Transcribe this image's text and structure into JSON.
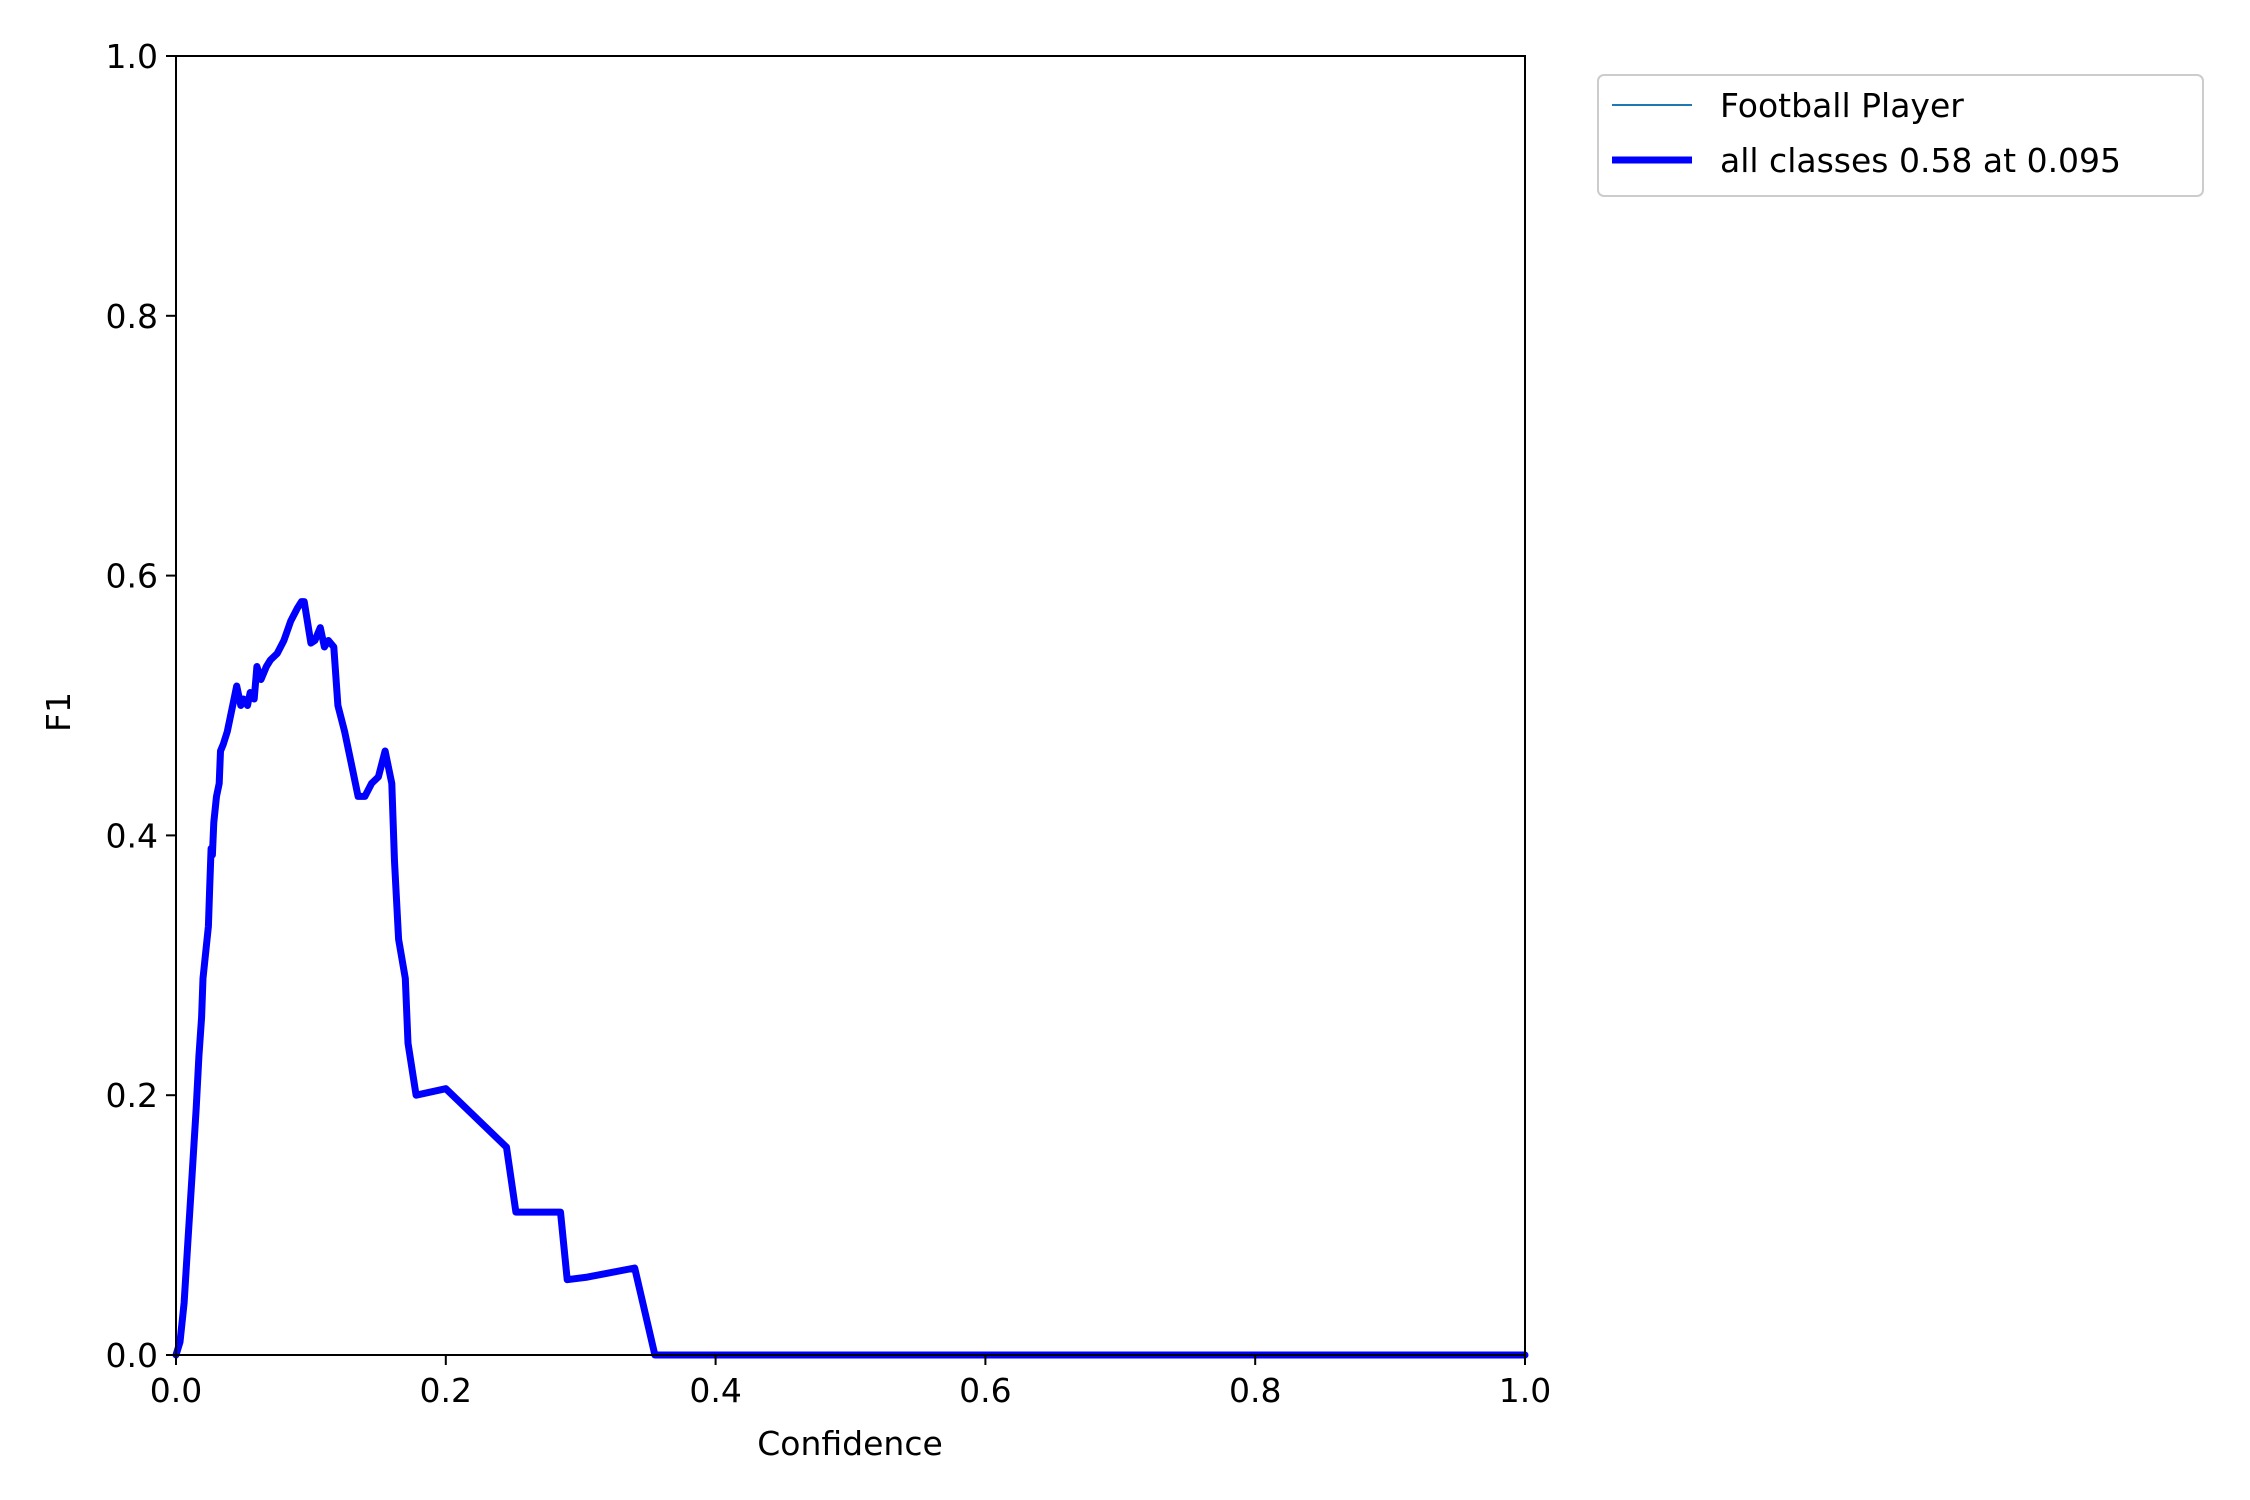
{
  "chart_data": {
    "type": "line",
    "title": "",
    "xlabel": "Confidence",
    "ylabel": "F1",
    "xlim": [
      0,
      1
    ],
    "ylim": [
      0,
      1
    ],
    "x_ticks": [
      "0.0",
      "0.2",
      "0.4",
      "0.6",
      "0.8",
      "1.0"
    ],
    "y_ticks": [
      "0.0",
      "0.2",
      "0.4",
      "0.6",
      "0.8",
      "1.0"
    ],
    "grid": false,
    "legend_position": "outside-top-right",
    "series": [
      {
        "name": "Football Player",
        "color": "#1f77b4",
        "points": [
          [
            0.0,
            0.0
          ],
          [
            0.003,
            0.01
          ],
          [
            0.006,
            0.04
          ],
          [
            0.009,
            0.09
          ],
          [
            0.012,
            0.14
          ],
          [
            0.015,
            0.19
          ],
          [
            0.017,
            0.23
          ],
          [
            0.019,
            0.26
          ],
          [
            0.02,
            0.29
          ],
          [
            0.022,
            0.31
          ],
          [
            0.024,
            0.33
          ],
          [
            0.025,
            0.36
          ],
          [
            0.026,
            0.39
          ],
          [
            0.027,
            0.385
          ],
          [
            0.028,
            0.41
          ],
          [
            0.03,
            0.43
          ],
          [
            0.032,
            0.44
          ],
          [
            0.033,
            0.465
          ],
          [
            0.035,
            0.47
          ],
          [
            0.038,
            0.48
          ],
          [
            0.04,
            0.49
          ],
          [
            0.042,
            0.5
          ],
          [
            0.045,
            0.515
          ],
          [
            0.048,
            0.5
          ],
          [
            0.05,
            0.505
          ],
          [
            0.053,
            0.5
          ],
          [
            0.055,
            0.51
          ],
          [
            0.058,
            0.505
          ],
          [
            0.06,
            0.53
          ],
          [
            0.063,
            0.52
          ],
          [
            0.065,
            0.525
          ],
          [
            0.067,
            0.53
          ],
          [
            0.07,
            0.535
          ],
          [
            0.075,
            0.54
          ],
          [
            0.08,
            0.55
          ],
          [
            0.085,
            0.565
          ],
          [
            0.09,
            0.575
          ],
          [
            0.093,
            0.58
          ],
          [
            0.095,
            0.58
          ],
          [
            0.1,
            0.548
          ],
          [
            0.103,
            0.55
          ],
          [
            0.107,
            0.56
          ],
          [
            0.11,
            0.545
          ],
          [
            0.113,
            0.55
          ],
          [
            0.117,
            0.545
          ],
          [
            0.12,
            0.5
          ],
          [
            0.125,
            0.48
          ],
          [
            0.13,
            0.455
          ],
          [
            0.135,
            0.43
          ],
          [
            0.14,
            0.43
          ],
          [
            0.145,
            0.44
          ],
          [
            0.15,
            0.445
          ],
          [
            0.155,
            0.465
          ],
          [
            0.16,
            0.44
          ],
          [
            0.162,
            0.38
          ],
          [
            0.165,
            0.32
          ],
          [
            0.17,
            0.29
          ],
          [
            0.172,
            0.24
          ],
          [
            0.178,
            0.2
          ],
          [
            0.2,
            0.205
          ],
          [
            0.245,
            0.16
          ],
          [
            0.252,
            0.11
          ],
          [
            0.285,
            0.11
          ],
          [
            0.29,
            0.058
          ],
          [
            0.305,
            0.06
          ],
          [
            0.32,
            0.063
          ],
          [
            0.34,
            0.067
          ],
          [
            0.355,
            0.0
          ],
          [
            1.0,
            0.0
          ]
        ]
      },
      {
        "name": "all classes 0.58 at 0.095",
        "color": "#0000ff",
        "points": [
          [
            0.0,
            0.0
          ],
          [
            0.003,
            0.01
          ],
          [
            0.006,
            0.04
          ],
          [
            0.009,
            0.09
          ],
          [
            0.012,
            0.14
          ],
          [
            0.015,
            0.19
          ],
          [
            0.017,
            0.23
          ],
          [
            0.019,
            0.26
          ],
          [
            0.02,
            0.29
          ],
          [
            0.022,
            0.31
          ],
          [
            0.024,
            0.33
          ],
          [
            0.025,
            0.36
          ],
          [
            0.026,
            0.39
          ],
          [
            0.027,
            0.385
          ],
          [
            0.028,
            0.41
          ],
          [
            0.03,
            0.43
          ],
          [
            0.032,
            0.44
          ],
          [
            0.033,
            0.465
          ],
          [
            0.035,
            0.47
          ],
          [
            0.038,
            0.48
          ],
          [
            0.04,
            0.49
          ],
          [
            0.042,
            0.5
          ],
          [
            0.045,
            0.515
          ],
          [
            0.048,
            0.5
          ],
          [
            0.05,
            0.505
          ],
          [
            0.053,
            0.5
          ],
          [
            0.055,
            0.51
          ],
          [
            0.058,
            0.505
          ],
          [
            0.06,
            0.53
          ],
          [
            0.063,
            0.52
          ],
          [
            0.065,
            0.525
          ],
          [
            0.067,
            0.53
          ],
          [
            0.07,
            0.535
          ],
          [
            0.075,
            0.54
          ],
          [
            0.08,
            0.55
          ],
          [
            0.085,
            0.565
          ],
          [
            0.09,
            0.575
          ],
          [
            0.093,
            0.58
          ],
          [
            0.095,
            0.58
          ],
          [
            0.1,
            0.548
          ],
          [
            0.103,
            0.55
          ],
          [
            0.107,
            0.56
          ],
          [
            0.11,
            0.545
          ],
          [
            0.113,
            0.55
          ],
          [
            0.117,
            0.545
          ],
          [
            0.12,
            0.5
          ],
          [
            0.125,
            0.48
          ],
          [
            0.13,
            0.455
          ],
          [
            0.135,
            0.43
          ],
          [
            0.14,
            0.43
          ],
          [
            0.145,
            0.44
          ],
          [
            0.15,
            0.445
          ],
          [
            0.155,
            0.465
          ],
          [
            0.16,
            0.44
          ],
          [
            0.162,
            0.38
          ],
          [
            0.165,
            0.32
          ],
          [
            0.17,
            0.29
          ],
          [
            0.172,
            0.24
          ],
          [
            0.178,
            0.2
          ],
          [
            0.2,
            0.205
          ],
          [
            0.245,
            0.16
          ],
          [
            0.252,
            0.11
          ],
          [
            0.285,
            0.11
          ],
          [
            0.29,
            0.058
          ],
          [
            0.305,
            0.06
          ],
          [
            0.32,
            0.063
          ],
          [
            0.34,
            0.067
          ],
          [
            0.355,
            0.0
          ],
          [
            1.0,
            0.0
          ]
        ]
      }
    ]
  }
}
